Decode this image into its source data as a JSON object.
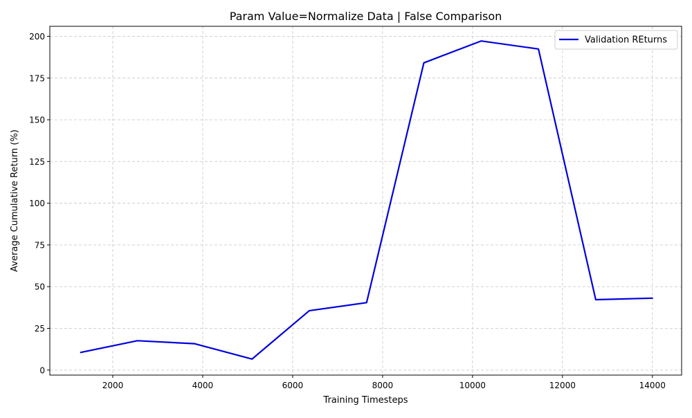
{
  "chart_data": {
    "type": "line",
    "title": "Param Value=Normalize Data | False Comparison",
    "xlabel": "Training Timesteps",
    "ylabel": "Average Cumulative Return (%)",
    "xlim": [
      600,
      14650
    ],
    "ylim": [
      -3,
      206
    ],
    "xticks": [
      2000,
      4000,
      6000,
      8000,
      10000,
      12000,
      14000
    ],
    "yticks": [
      0,
      25,
      50,
      75,
      100,
      125,
      150,
      175,
      200
    ],
    "grid": true,
    "legend_position": "top-right",
    "series": [
      {
        "name": "Validation REturns",
        "color": "#0000dd",
        "x": [
          1274,
          2548,
          3822,
          5096,
          6370,
          7644,
          8918,
          10192,
          11466,
          12740,
          14014
        ],
        "y": [
          10.5,
          17.6,
          15.8,
          6.6,
          35.6,
          40.4,
          184.1,
          197.2,
          192.4,
          42.2,
          43.1
        ]
      }
    ]
  }
}
